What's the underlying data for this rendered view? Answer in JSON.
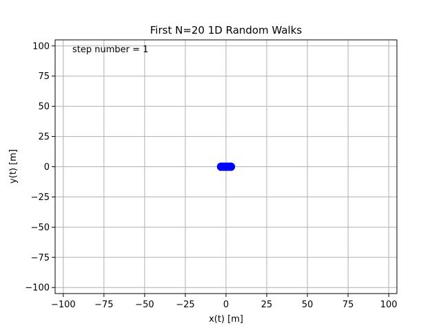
{
  "chart_data": {
    "type": "scatter",
    "title": "First N=20 1D Random Walks",
    "xlabel": "x(t) [m]",
    "ylabel": "y(t) [m]",
    "xlim": [
      -105,
      105
    ],
    "ylim": [
      -105,
      105
    ],
    "xticks": [
      -100,
      -75,
      -50,
      -25,
      0,
      25,
      50,
      75,
      100
    ],
    "yticks": [
      -100,
      -75,
      -50,
      -25,
      0,
      25,
      50,
      75,
      100
    ],
    "xtick_labels": [
      "−100",
      "−75",
      "−50",
      "−25",
      "0",
      "25",
      "50",
      "75",
      "100"
    ],
    "ytick_labels": [
      "−100",
      "−75",
      "−50",
      "−25",
      "0",
      "25",
      "50",
      "75",
      "100"
    ],
    "grid": true,
    "annotation": "step number = 1",
    "marker_color": "#0000ff",
    "series": [
      {
        "x": [
          -3,
          -2,
          -1,
          0,
          1,
          2,
          3,
          -3,
          -1,
          1,
          3,
          -2,
          0,
          2,
          -3,
          -1,
          1,
          3,
          -2,
          2
        ],
        "y": [
          0,
          0,
          0,
          0,
          0,
          0,
          0,
          0,
          0,
          0,
          0,
          0,
          0,
          0,
          0,
          0,
          0,
          0,
          0,
          0
        ]
      }
    ]
  }
}
